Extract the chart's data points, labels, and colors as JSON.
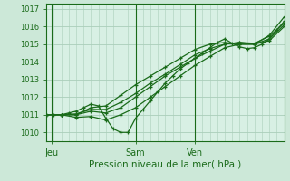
{
  "title": "Pression niveau de la mer( hPa )",
  "ylabel_ticks": [
    1010,
    1011,
    1012,
    1013,
    1014,
    1015,
    1016,
    1017
  ],
  "ylim": [
    1009.5,
    1017.3
  ],
  "xlim": [
    0,
    96
  ],
  "xtick_positions": [
    2,
    36,
    60
  ],
  "xtick_labels": [
    "Jeu",
    "Sam",
    "Ven"
  ],
  "vline_positions": [
    2,
    36,
    60
  ],
  "bg_color": "#cce8d8",
  "plot_bg_color": "#d8f0e4",
  "line_color": "#1a6b1a",
  "grid_color": "#aaceba",
  "lines": [
    [
      0,
      1011.0,
      3,
      1011.0,
      6,
      1011.0,
      9,
      1011.1,
      12,
      1011.2,
      15,
      1011.4,
      18,
      1011.6,
      21,
      1011.5,
      24,
      1010.8,
      27,
      1010.2,
      30,
      1010.0,
      33,
      1010.0,
      36,
      1010.8,
      39,
      1011.3,
      42,
      1011.8,
      45,
      1012.3,
      48,
      1012.8,
      51,
      1013.2,
      54,
      1013.6,
      57,
      1013.9,
      60,
      1014.2,
      63,
      1014.5,
      66,
      1014.8,
      69,
      1015.1,
      72,
      1015.3,
      75,
      1015.05,
      78,
      1014.85,
      81,
      1014.75,
      84,
      1014.8,
      87,
      1015.0,
      90,
      1015.3,
      93,
      1015.8,
      96,
      1016.3
    ],
    [
      0,
      1011.0,
      6,
      1011.0,
      12,
      1010.85,
      18,
      1010.9,
      24,
      1010.7,
      30,
      1011.0,
      36,
      1011.4,
      42,
      1012.0,
      48,
      1012.6,
      54,
      1013.2,
      60,
      1013.8,
      66,
      1014.3,
      72,
      1014.8,
      78,
      1015.0,
      84,
      1015.0,
      90,
      1015.2,
      96,
      1016.0
    ],
    [
      0,
      1011.0,
      6,
      1011.0,
      12,
      1011.0,
      18,
      1011.2,
      24,
      1011.1,
      30,
      1011.4,
      36,
      1012.0,
      42,
      1012.6,
      48,
      1013.2,
      54,
      1013.7,
      60,
      1014.2,
      66,
      1014.6,
      72,
      1015.0,
      78,
      1015.1,
      84,
      1015.0,
      90,
      1015.3,
      96,
      1016.1
    ],
    [
      0,
      1011.0,
      6,
      1011.0,
      12,
      1011.05,
      18,
      1011.3,
      24,
      1011.3,
      30,
      1011.7,
      36,
      1012.2,
      42,
      1012.8,
      48,
      1013.3,
      54,
      1013.85,
      60,
      1014.4,
      66,
      1014.75,
      72,
      1015.0,
      78,
      1015.1,
      84,
      1015.05,
      90,
      1015.45,
      96,
      1016.2
    ],
    [
      0,
      1011.0,
      6,
      1011.0,
      12,
      1011.0,
      18,
      1011.4,
      24,
      1011.5,
      30,
      1012.1,
      36,
      1012.7,
      42,
      1013.2,
      48,
      1013.7,
      54,
      1014.2,
      60,
      1014.7,
      66,
      1015.0,
      72,
      1015.1,
      78,
      1015.0,
      84,
      1015.0,
      90,
      1015.5,
      96,
      1016.55
    ]
  ]
}
